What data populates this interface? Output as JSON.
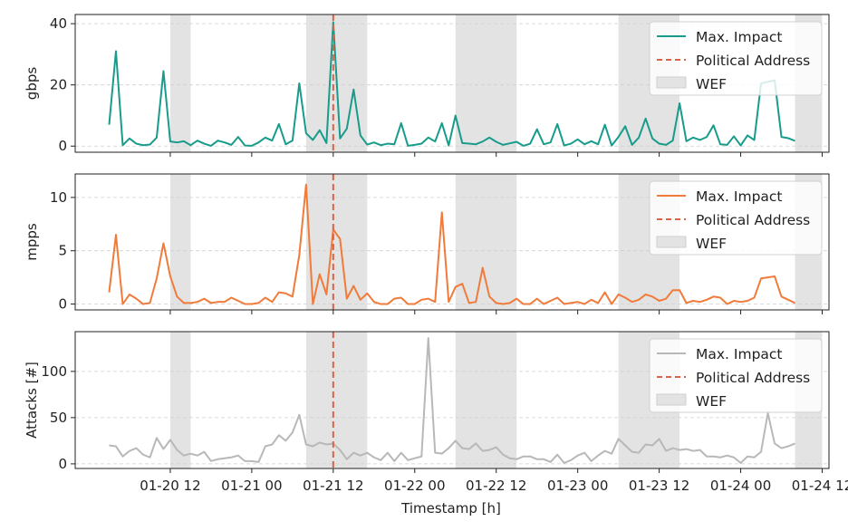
{
  "chart_data": {
    "type": "line",
    "x_unit": "hours",
    "x_tick_labels": [
      "01-20 12",
      "01-21 00",
      "01-21 12",
      "01-22 00",
      "01-22 12",
      "01-23 00",
      "01-23 12",
      "01-24 00",
      "01-24 12"
    ],
    "x_ticks": [
      "2024-01-20 12:00",
      "2024-01-21 00:00",
      "2024-01-21 12:00",
      "2024-01-22 00:00",
      "2024-01-22 12:00",
      "2024-01-23 00:00",
      "2024-01-23 12:00",
      "2024-01-24 00:00",
      "2024-01-24 12:00"
    ],
    "xlabel": "Timestamp [h]",
    "xlim": [
      "2024-01-19 22:00",
      "2024-01-24 13:00"
    ],
    "x_start": "2024-01-20 03:00",
    "x_step_hours": 1,
    "political_address": "2024-01-21 12:00",
    "wef_periods": [
      [
        "2024-01-20 12:00",
        "2024-01-20 15:00"
      ],
      [
        "2024-01-21 08:00",
        "2024-01-21 17:00"
      ],
      [
        "2024-01-22 06:00",
        "2024-01-22 15:00"
      ],
      [
        "2024-01-23 06:00",
        "2024-01-23 15:00"
      ],
      [
        "2024-01-24 08:00",
        "2024-01-24 12:00"
      ]
    ],
    "legend": [
      "Max. Impact",
      "Political Address",
      "WEF"
    ],
    "legend_position": "upper right",
    "grid": "y dashed",
    "panels": [
      {
        "ylabel": "gbps",
        "ylim": [
          -2,
          43
        ],
        "yticks": [
          "0",
          "20",
          "40"
        ],
        "color": "#179c8c",
        "values": [
          7,
          31,
          0.3,
          2.5,
          0.8,
          0.3,
          0.5,
          2.8,
          24.5,
          1.5,
          1.2,
          1.6,
          0.3,
          1.8,
          0.8,
          0.1,
          1.8,
          1.2,
          0.4,
          3.0,
          0.2,
          0.1,
          1.2,
          2.8,
          1.8,
          7.2,
          0.6,
          1.8,
          20.5,
          4.2,
          2.0,
          5.2,
          1.0,
          40.5,
          2.5,
          5.7,
          18.5,
          3.5,
          0.5,
          1.2,
          0.3,
          0.8,
          0.6,
          7.5,
          0.1,
          0.4,
          0.8,
          2.8,
          1.5,
          7.5,
          0.2,
          10.0,
          1.0,
          0.8,
          0.6,
          1.5,
          2.8,
          1.4,
          0.4,
          0.9,
          1.4,
          0.1,
          0.8,
          5.5,
          0.6,
          1.2,
          7.2,
          0.2,
          0.8,
          2.2,
          0.6,
          1.6,
          0.6,
          7.0,
          0.2,
          3.0,
          6.5,
          0.4,
          2.8,
          9.0,
          2.5,
          0.8,
          0.4,
          1.8,
          14.0,
          1.6,
          2.8,
          2.0,
          3.0,
          6.8,
          0.6,
          0.4,
          3.2,
          0.2,
          3.5,
          2.0,
          20.5,
          21.0,
          21.5,
          3.0,
          2.6,
          1.7
        ]
      },
      {
        "ylabel": "mpps",
        "ylim": [
          -0.55,
          12.2
        ],
        "yticks": [
          "0",
          "5",
          "10"
        ],
        "color": "#f07b3a",
        "values": [
          1.1,
          6.5,
          0.0,
          0.9,
          0.5,
          0.0,
          0.1,
          2.4,
          5.7,
          2.6,
          0.7,
          0.1,
          0.1,
          0.2,
          0.5,
          0.1,
          0.2,
          0.2,
          0.6,
          0.3,
          0.0,
          0.0,
          0.1,
          0.6,
          0.2,
          1.1,
          1.0,
          0.7,
          4.6,
          11.2,
          0.0,
          2.8,
          0.9,
          7.0,
          6.1,
          0.5,
          1.7,
          0.4,
          1.0,
          0.2,
          0.0,
          0.0,
          0.5,
          0.6,
          0.0,
          0.0,
          0.4,
          0.5,
          0.2,
          8.6,
          0.2,
          1.6,
          1.9,
          0.1,
          0.2,
          3.4,
          0.7,
          0.1,
          0.0,
          0.1,
          0.5,
          0.0,
          0.0,
          0.5,
          0.0,
          0.3,
          0.6,
          0.0,
          0.1,
          0.2,
          0.0,
          0.4,
          0.1,
          1.1,
          0.0,
          0.9,
          0.6,
          0.2,
          0.4,
          0.9,
          0.7,
          0.3,
          0.5,
          1.3,
          1.3,
          0.1,
          0.3,
          0.2,
          0.4,
          0.7,
          0.6,
          0.0,
          0.3,
          0.2,
          0.3,
          0.6,
          2.4,
          2.5,
          2.6,
          0.7,
          0.4,
          0.1
        ]
      },
      {
        "ylabel": "Attacks [#]",
        "ylim": [
          -5,
          143
        ],
        "yticks": [
          "0",
          "50",
          "100"
        ],
        "color": "#b8b8b8",
        "values": [
          20,
          19,
          8,
          14,
          17,
          10,
          7,
          28,
          16,
          26,
          15,
          9,
          11,
          9,
          13,
          3,
          5,
          6,
          7,
          9,
          3,
          3,
          2,
          19,
          21,
          31,
          25,
          34,
          53,
          21,
          19,
          23,
          21,
          22,
          15,
          5,
          12,
          9,
          12,
          7,
          4,
          12,
          3,
          12,
          4,
          6,
          8,
          136,
          12,
          11,
          17,
          25,
          17,
          16,
          22,
          14,
          15,
          18,
          10,
          6,
          5,
          8,
          8,
          5,
          5,
          2,
          10,
          1,
          4,
          9,
          12,
          3,
          9,
          14,
          11,
          27,
          20,
          13,
          12,
          21,
          20,
          27,
          14,
          17,
          15,
          16,
          14,
          15,
          8,
          8,
          7,
          9,
          7,
          1,
          8,
          7,
          13,
          55,
          22,
          17,
          19,
          22
        ]
      }
    ]
  }
}
